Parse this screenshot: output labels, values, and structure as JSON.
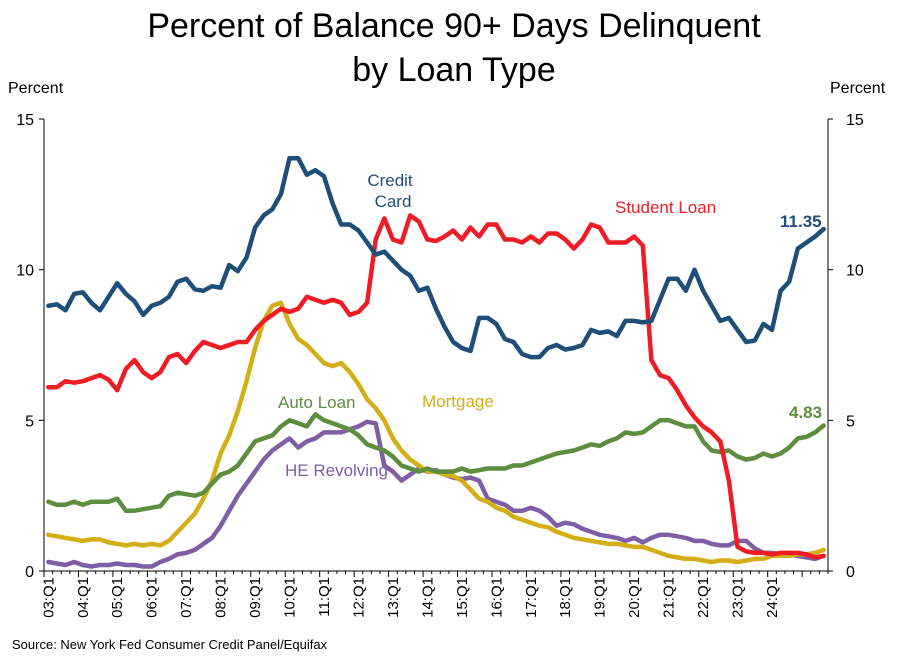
{
  "title_line1": "Percent of Balance 90+ Days Delinquent",
  "title_line2": "by Loan Type",
  "left_axis_unit": "Percent",
  "right_axis_unit": "Percent",
  "source": "Source: New York Fed Consumer Credit Panel/Equifax",
  "chart_data": {
    "type": "line",
    "title": "Percent of Balance 90+ Days Delinquent by Loan Type",
    "ylabel": "Percent",
    "ylim": [
      0,
      15
    ],
    "y_ticks": [
      0,
      5,
      10,
      15
    ],
    "x_tick_labels": [
      "03:Q1",
      "04:Q1",
      "05:Q1",
      "06:Q1",
      "07:Q1",
      "08:Q1",
      "09:Q1",
      "10:Q1",
      "11:Q1",
      "12:Q1",
      "13:Q1",
      "14:Q1",
      "15:Q1",
      "16:Q1",
      "17:Q1",
      "18:Q1",
      "19:Q1",
      "20:Q1",
      "21:Q1",
      "22:Q1",
      "23:Q1",
      "24:Q1"
    ],
    "x_range": [
      "2003 Q1",
      "2024 Q4"
    ],
    "grid": false,
    "series": [
      {
        "name": "Credit Card",
        "color": "#1f4e79",
        "end_label": "11.35",
        "values": [
          8.8,
          8.85,
          8.65,
          9.2,
          9.25,
          8.9,
          8.65,
          9.1,
          9.55,
          9.2,
          8.95,
          8.5,
          8.8,
          8.9,
          9.1,
          9.6,
          9.7,
          9.35,
          9.3,
          9.45,
          9.4,
          10.15,
          9.95,
          10.4,
          11.4,
          11.8,
          12.0,
          12.5,
          13.7,
          13.7,
          13.15,
          13.3,
          13.1,
          12.2,
          11.5,
          11.5,
          11.3,
          10.9,
          10.5,
          10.6,
          10.3,
          10.0,
          9.8,
          9.3,
          9.4,
          8.7,
          8.1,
          7.6,
          7.4,
          7.3,
          8.4,
          8.4,
          8.2,
          7.7,
          7.6,
          7.2,
          7.1,
          7.1,
          7.4,
          7.5,
          7.35,
          7.4,
          7.5,
          8.0,
          7.9,
          7.95,
          7.8,
          8.3,
          8.3,
          8.25,
          8.3,
          9.0,
          9.7,
          9.7,
          9.3,
          10.0,
          9.3,
          8.8,
          8.3,
          8.4,
          8.0,
          7.6,
          7.65,
          8.2,
          8.0,
          9.3,
          9.6,
          10.7,
          10.9,
          11.1,
          11.35
        ]
      },
      {
        "name": "Student Loan",
        "color": "#ee1c25",
        "values": [
          6.1,
          6.1,
          6.3,
          6.25,
          6.3,
          6.4,
          6.5,
          6.35,
          6.0,
          6.7,
          7.0,
          6.6,
          6.4,
          6.6,
          7.1,
          7.2,
          6.9,
          7.3,
          7.6,
          7.5,
          7.4,
          7.5,
          7.6,
          7.6,
          8.0,
          8.3,
          8.5,
          8.7,
          8.6,
          8.7,
          9.1,
          9.0,
          8.9,
          9.0,
          8.9,
          8.5,
          8.6,
          8.9,
          11.0,
          11.7,
          11.0,
          10.9,
          11.8,
          11.6,
          11.0,
          10.95,
          11.1,
          11.3,
          11.0,
          11.4,
          11.1,
          11.5,
          11.5,
          11.0,
          11.0,
          10.9,
          11.1,
          10.9,
          11.2,
          11.2,
          11.0,
          10.7,
          11.0,
          11.5,
          11.4,
          10.9,
          10.9,
          10.9,
          11.1,
          10.8,
          7.0,
          6.5,
          6.4,
          6.0,
          5.5,
          5.1,
          4.8,
          4.6,
          4.3,
          3.0,
          0.8,
          0.65,
          0.6,
          0.6,
          0.55,
          0.6,
          0.6,
          0.6,
          0.55,
          0.45,
          0.5
        ]
      },
      {
        "name": "Mortgage",
        "color": "#d4ae17",
        "values": [
          1.2,
          1.15,
          1.1,
          1.05,
          1.0,
          1.05,
          1.05,
          0.95,
          0.9,
          0.85,
          0.9,
          0.85,
          0.9,
          0.85,
          1.0,
          1.3,
          1.6,
          1.9,
          2.4,
          3.0,
          3.9,
          4.5,
          5.3,
          6.3,
          7.4,
          8.3,
          8.8,
          8.9,
          8.2,
          7.7,
          7.5,
          7.2,
          6.9,
          6.8,
          6.9,
          6.6,
          6.2,
          5.7,
          5.4,
          5.0,
          4.4,
          4.0,
          3.7,
          3.5,
          3.3,
          3.3,
          3.2,
          3.15,
          3.0,
          2.7,
          2.4,
          2.3,
          2.1,
          2.0,
          1.8,
          1.7,
          1.6,
          1.5,
          1.45,
          1.3,
          1.2,
          1.1,
          1.05,
          1.0,
          0.95,
          0.9,
          0.9,
          0.85,
          0.8,
          0.8,
          0.7,
          0.6,
          0.5,
          0.45,
          0.4,
          0.4,
          0.35,
          0.3,
          0.35,
          0.35,
          0.3,
          0.35,
          0.4,
          0.4,
          0.5,
          0.5,
          0.5,
          0.55,
          0.55,
          0.6,
          0.7
        ]
      },
      {
        "name": "Auto Loan",
        "color": "#5d8d3f",
        "end_label": "4.83",
        "values": [
          2.3,
          2.2,
          2.2,
          2.3,
          2.2,
          2.3,
          2.3,
          2.3,
          2.4,
          2.0,
          2.0,
          2.05,
          2.1,
          2.15,
          2.5,
          2.6,
          2.55,
          2.5,
          2.6,
          2.9,
          3.2,
          3.3,
          3.5,
          3.9,
          4.3,
          4.4,
          4.5,
          4.8,
          5.0,
          4.9,
          4.8,
          5.2,
          5.0,
          4.9,
          4.8,
          4.7,
          4.5,
          4.2,
          4.1,
          4.0,
          3.8,
          3.5,
          3.4,
          3.3,
          3.4,
          3.3,
          3.3,
          3.3,
          3.4,
          3.3,
          3.35,
          3.4,
          3.4,
          3.4,
          3.5,
          3.5,
          3.6,
          3.7,
          3.8,
          3.9,
          3.95,
          4.0,
          4.1,
          4.2,
          4.15,
          4.3,
          4.4,
          4.6,
          4.55,
          4.6,
          4.8,
          5.0,
          5.0,
          4.9,
          4.8,
          4.8,
          4.3,
          4.0,
          3.95,
          4.0,
          3.8,
          3.7,
          3.75,
          3.9,
          3.8,
          3.9,
          4.1,
          4.4,
          4.45,
          4.6,
          4.83
        ]
      },
      {
        "name": "HE Revolving",
        "color": "#7f5ea6",
        "values": [
          0.3,
          0.25,
          0.2,
          0.3,
          0.2,
          0.15,
          0.2,
          0.2,
          0.25,
          0.2,
          0.2,
          0.15,
          0.15,
          0.3,
          0.4,
          0.55,
          0.6,
          0.7,
          0.9,
          1.1,
          1.5,
          2.0,
          2.5,
          2.9,
          3.3,
          3.7,
          4.0,
          4.2,
          4.4,
          4.1,
          4.3,
          4.4,
          4.6,
          4.6,
          4.6,
          4.7,
          4.8,
          4.95,
          4.9,
          3.5,
          3.3,
          3.0,
          3.2,
          3.4,
          3.3,
          3.35,
          3.2,
          3.1,
          3.05,
          3.1,
          3.0,
          2.4,
          2.3,
          2.2,
          2.0,
          2.0,
          2.1,
          2.0,
          1.8,
          1.5,
          1.6,
          1.55,
          1.4,
          1.3,
          1.2,
          1.15,
          1.1,
          1.0,
          1.1,
          0.95,
          1.1,
          1.2,
          1.2,
          1.15,
          1.1,
          1.0,
          1.0,
          0.9,
          0.85,
          0.85,
          1.0,
          1.0,
          0.75,
          0.6,
          0.6,
          0.55,
          0.55,
          0.5,
          0.45,
          0.4,
          0.5
        ]
      }
    ],
    "annotations": [
      {
        "text": "Credit",
        "series": "Credit Card"
      },
      {
        "text": "Card",
        "series": "Credit Card"
      },
      {
        "text": "Student Loan",
        "series": "Student Loan"
      },
      {
        "text": "Mortgage",
        "series": "Mortgage"
      },
      {
        "text": "Auto Loan",
        "series": "Auto Loan"
      },
      {
        "text": "HE Revolving",
        "series": "HE Revolving"
      }
    ]
  }
}
